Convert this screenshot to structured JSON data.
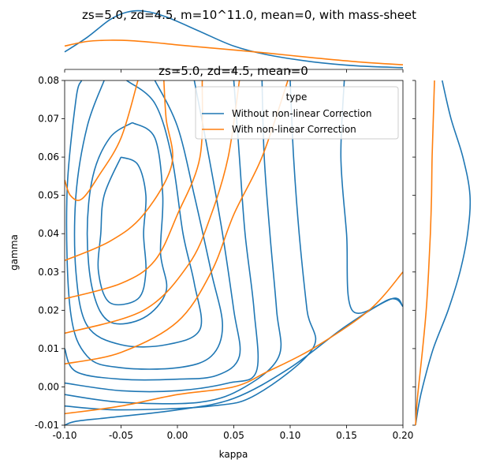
{
  "chart_data": {
    "type": "line",
    "title": "zs=5.0, zd=4.5, m=10^11.0, mean=0, with mass-sheet",
    "subtitle": "zs=5.0, zd=4.5, mean=0",
    "xlabel": "kappa",
    "ylabel": "gamma",
    "xlim": [
      -0.1,
      0.2
    ],
    "ylim": [
      -0.01,
      0.08
    ],
    "x_ticks": [
      "-0.10",
      "-0.05",
      "0.00",
      "0.05",
      "0.10",
      "0.15",
      "0.20"
    ],
    "y_ticks": [
      "-0.01",
      "0.00",
      "0.01",
      "0.02",
      "0.03",
      "0.04",
      "0.05",
      "0.06",
      "0.07",
      "0.08"
    ],
    "legend": {
      "title": "type",
      "position": "upper right",
      "entries": [
        "Without non-linear Correction",
        "With non-linear Correction"
      ]
    },
    "colors": {
      "without": "#1f77b4",
      "with": "#ff7f0e"
    },
    "series": [
      {
        "name": "Without non-linear Correction",
        "color": "#1f77b4",
        "contours": [
          [
            [
              -0.05,
              0.06
            ],
            [
              -0.035,
              0.058
            ],
            [
              -0.028,
              0.05
            ],
            [
              -0.03,
              0.04
            ],
            [
              -0.028,
              0.03
            ],
            [
              -0.035,
              0.023
            ],
            [
              -0.06,
              0.022
            ],
            [
              -0.07,
              0.03
            ],
            [
              -0.068,
              0.04
            ],
            [
              -0.065,
              0.05
            ],
            [
              -0.05,
              0.06
            ]
          ],
          [
            [
              -0.04,
              0.069
            ],
            [
              -0.02,
              0.065
            ],
            [
              -0.013,
              0.05
            ],
            [
              -0.015,
              0.035
            ],
            [
              -0.01,
              0.025
            ],
            [
              -0.03,
              0.018
            ],
            [
              -0.06,
              0.017
            ],
            [
              -0.075,
              0.025
            ],
            [
              -0.08,
              0.04
            ],
            [
              -0.075,
              0.055
            ],
            [
              -0.06,
              0.065
            ],
            [
              -0.04,
              0.069
            ]
          ],
          [
            [
              -0.045,
              0.08
            ],
            [
              -0.02,
              0.074
            ],
            [
              -0.005,
              0.06
            ],
            [
              0.005,
              0.04
            ],
            [
              0.015,
              0.027
            ],
            [
              0.02,
              0.015
            ],
            [
              -0.01,
              0.011
            ],
            [
              -0.05,
              0.011
            ],
            [
              -0.08,
              0.016
            ],
            [
              -0.09,
              0.03
            ],
            [
              -0.09,
              0.05
            ],
            [
              -0.08,
              0.068
            ],
            [
              -0.065,
              0.08
            ]
          ],
          [
            [
              -0.02,
              0.08
            ],
            [
              0.0,
              0.068
            ],
            [
              0.015,
              0.05
            ],
            [
              0.03,
              0.03
            ],
            [
              0.04,
              0.016
            ],
            [
              0.03,
              0.008
            ],
            [
              0.0,
              0.005
            ],
            [
              -0.05,
              0.005
            ],
            [
              -0.08,
              0.008
            ],
            [
              -0.095,
              0.02
            ],
            [
              -0.098,
              0.05
            ],
            [
              -0.09,
              0.075
            ],
            [
              -0.085,
              0.08
            ]
          ],
          [
            [
              0.015,
              0.08
            ],
            [
              0.028,
              0.06
            ],
            [
              0.04,
              0.04
            ],
            [
              0.05,
              0.02
            ],
            [
              0.055,
              0.008
            ],
            [
              0.035,
              0.003
            ],
            [
              0.0,
              0.002
            ],
            [
              -0.05,
              0.002
            ],
            [
              -0.09,
              0.004
            ],
            [
              -0.1,
              0.01
            ]
          ],
          [
            [
              0.05,
              0.08
            ],
            [
              0.055,
              0.06
            ],
            [
              0.06,
              0.04
            ],
            [
              0.068,
              0.02
            ],
            [
              0.07,
              0.004
            ],
            [
              0.045,
              0.001
            ],
            [
              0.0,
              -0.001
            ],
            [
              -0.05,
              -0.001
            ],
            [
              -0.1,
              0.001
            ]
          ],
          [
            [
              0.075,
              0.08
            ],
            [
              0.077,
              0.06
            ],
            [
              0.082,
              0.04
            ],
            [
              0.088,
              0.02
            ],
            [
              0.09,
              0.008
            ],
            [
              0.06,
              0.0
            ],
            [
              0.02,
              -0.004
            ],
            [
              -0.05,
              -0.004
            ],
            [
              -0.1,
              -0.002
            ]
          ],
          [
            [
              0.1,
              0.08
            ],
            [
              0.103,
              0.06
            ],
            [
              0.108,
              0.04
            ],
            [
              0.115,
              0.02
            ],
            [
              0.12,
              0.01
            ],
            [
              0.07,
              -0.002
            ],
            [
              0.03,
              -0.005
            ],
            [
              -0.05,
              -0.006
            ],
            [
              -0.1,
              -0.005
            ]
          ],
          [
            [
              0.148,
              0.08
            ],
            [
              0.145,
              0.06
            ],
            [
              0.15,
              0.04
            ],
            [
              0.155,
              0.02
            ],
            [
              0.19,
              0.023
            ],
            [
              0.2,
              0.021
            ]
          ],
          [
            [
              0.2,
              0.021
            ],
            [
              0.19,
              0.023
            ],
            [
              0.15,
              0.016
            ],
            [
              0.1,
              0.005
            ],
            [
              0.05,
              -0.003
            ],
            [
              0.0,
              -0.006
            ],
            [
              -0.06,
              -0.008
            ],
            [
              -0.09,
              -0.009
            ],
            [
              -0.1,
              -0.01
            ]
          ]
        ],
        "marginal_x": [
          [
            -0.1,
            0.3
          ],
          [
            -0.08,
            0.55
          ],
          [
            -0.06,
            0.85
          ],
          [
            -0.045,
            0.98
          ],
          [
            -0.03,
            1.0
          ],
          [
            -0.01,
            0.9
          ],
          [
            0.02,
            0.65
          ],
          [
            0.05,
            0.4
          ],
          [
            0.08,
            0.25
          ],
          [
            0.12,
            0.13
          ],
          [
            0.16,
            0.06
          ],
          [
            0.2,
            0.03
          ]
        ],
        "marginal_y": [
          [
            -0.01,
            0.0
          ],
          [
            -0.005,
            0.05
          ],
          [
            0.0,
            0.12
          ],
          [
            0.01,
            0.3
          ],
          [
            0.02,
            0.55
          ],
          [
            0.03,
            0.75
          ],
          [
            0.04,
            0.88
          ],
          [
            0.05,
            0.92
          ],
          [
            0.06,
            0.8
          ],
          [
            0.07,
            0.6
          ],
          [
            0.08,
            0.45
          ]
        ]
      },
      {
        "name": "With non-linear Correction",
        "color": "#ff7f0e",
        "contours": [
          [
            [
              -0.035,
              0.08
            ],
            [
              -0.05,
              0.065
            ],
            [
              -0.07,
              0.055
            ],
            [
              -0.085,
              0.049
            ],
            [
              -0.095,
              0.05
            ],
            [
              -0.1,
              0.054
            ]
          ],
          [
            [
              -0.012,
              0.08
            ],
            [
              -0.01,
              0.07
            ],
            [
              -0.005,
              0.058
            ],
            [
              -0.03,
              0.045
            ],
            [
              -0.06,
              0.038
            ],
            [
              -0.1,
              0.033
            ]
          ],
          [
            [
              0.022,
              0.08
            ],
            [
              0.02,
              0.06
            ],
            [
              0.0,
              0.045
            ],
            [
              -0.02,
              0.033
            ],
            [
              -0.05,
              0.027
            ],
            [
              -0.1,
              0.023
            ]
          ],
          [
            [
              0.055,
              0.08
            ],
            [
              0.045,
              0.06
            ],
            [
              0.03,
              0.045
            ],
            [
              0.01,
              0.032
            ],
            [
              -0.03,
              0.02
            ],
            [
              -0.1,
              0.014
            ]
          ],
          [
            [
              0.098,
              0.08
            ],
            [
              0.075,
              0.06
            ],
            [
              0.05,
              0.045
            ],
            [
              0.03,
              0.03
            ],
            [
              0.0,
              0.017
            ],
            [
              -0.05,
              0.009
            ],
            [
              -0.1,
              0.006
            ]
          ],
          [
            [
              0.2,
              0.03
            ],
            [
              0.17,
              0.02
            ],
            [
              0.12,
              0.01
            ],
            [
              0.08,
              0.004
            ],
            [
              0.05,
              0.0
            ],
            [
              0.0,
              -0.002
            ],
            [
              -0.05,
              -0.005
            ],
            [
              -0.1,
              -0.007
            ]
          ]
        ],
        "marginal_x": [
          [
            -0.1,
            0.4
          ],
          [
            -0.08,
            0.48
          ],
          [
            -0.06,
            0.5
          ],
          [
            -0.04,
            0.49
          ],
          [
            -0.02,
            0.46
          ],
          [
            0.0,
            0.42
          ],
          [
            0.04,
            0.35
          ],
          [
            0.08,
            0.28
          ],
          [
            0.12,
            0.2
          ],
          [
            0.16,
            0.13
          ],
          [
            0.2,
            0.08
          ]
        ],
        "marginal_y": [
          [
            -0.01,
            0.0
          ],
          [
            -0.005,
            0.02
          ],
          [
            0.0,
            0.05
          ],
          [
            0.01,
            0.12
          ],
          [
            0.02,
            0.18
          ],
          [
            0.03,
            0.22
          ],
          [
            0.04,
            0.25
          ],
          [
            0.05,
            0.27
          ],
          [
            0.06,
            0.28
          ],
          [
            0.07,
            0.3
          ],
          [
            0.08,
            0.32
          ]
        ]
      }
    ]
  }
}
